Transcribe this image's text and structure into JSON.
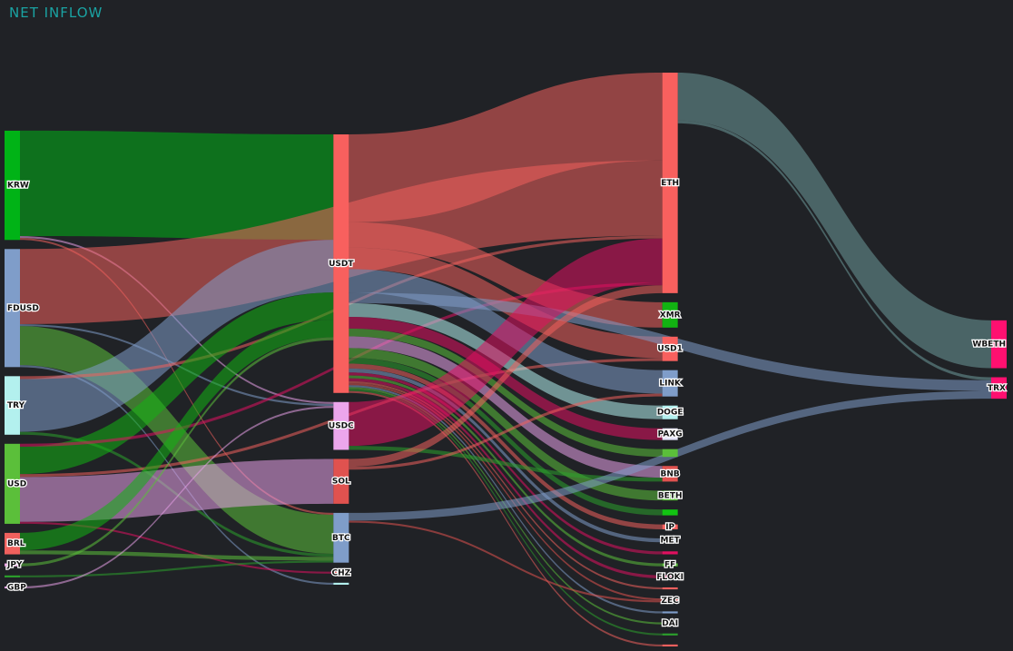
{
  "chart_data": {
    "type": "sankey",
    "title": "NET INFLOW",
    "link_opacity": 0.55,
    "nodes": [
      {
        "label": "KRW",
        "column": 0,
        "color": "#00b316"
      },
      {
        "label": "FDUSD",
        "column": 0,
        "color": "#7f9dc9"
      },
      {
        "label": "TRY",
        "column": 0,
        "color": "#b3f0ee"
      },
      {
        "label": "USD",
        "column": 0,
        "color": "#5bbf3a"
      },
      {
        "label": "BRL",
        "column": 0,
        "color": "#f0605d"
      },
      {
        "label": "JPY",
        "column": 0,
        "color": "#f0a8e8"
      },
      {
        "label": null,
        "column": 0,
        "color": "#2ca02c"
      },
      {
        "label": "GBP",
        "column": 0,
        "color": "#e8a0e8"
      },
      {
        "label": "USDT",
        "column": 1,
        "color": "#f8605e"
      },
      {
        "label": "USDC",
        "column": 1,
        "color": "#eca6ec"
      },
      {
        "label": "SOL",
        "column": 1,
        "color": "#e0524f"
      },
      {
        "label": "BTC",
        "column": 1,
        "color": "#7f9dc9"
      },
      {
        "label": "CHZ",
        "column": 1,
        "color": "#f05a5a"
      },
      {
        "label": null,
        "column": 1,
        "color": "#b3f0ee"
      },
      {
        "label": "ETH",
        "column": 2,
        "color": "#f8605e"
      },
      {
        "label": "XMR",
        "column": 2,
        "color": "#12b312"
      },
      {
        "label": "USD1",
        "column": 2,
        "color": "#f8605e"
      },
      {
        "label": "LINK",
        "column": 2,
        "color": "#7f9dc9"
      },
      {
        "label": "DOGE",
        "column": 2,
        "color": "#b3f0ee"
      },
      {
        "label": "PAXG",
        "column": 2,
        "color": "#e6e6fa"
      },
      {
        "label": null,
        "column": 2,
        "color": "#5bbf3a"
      },
      {
        "label": "BNB",
        "column": 2,
        "color": "#e0524f"
      },
      {
        "label": "BETH",
        "column": 2,
        "color": "#5bbf3a"
      },
      {
        "label": null,
        "column": 2,
        "color": "#12c312"
      },
      {
        "label": "IP",
        "column": 2,
        "color": "#f8605e"
      },
      {
        "label": "MET",
        "column": 2,
        "color": "#7f9dc9"
      },
      {
        "label": null,
        "column": 2,
        "color": "#e01060"
      },
      {
        "label": "FF",
        "column": 2,
        "color": "#5bbf3a"
      },
      {
        "label": "FLOKI",
        "column": 2,
        "color": "#e01060"
      },
      {
        "label": null,
        "column": 2,
        "color": "#f8605e"
      },
      {
        "label": "ZEC",
        "column": 2,
        "color": "#e0524f"
      },
      {
        "label": null,
        "column": 2,
        "color": "#7f9dc9"
      },
      {
        "label": "DAI",
        "column": 2,
        "color": "#5bbf3a"
      },
      {
        "label": null,
        "column": 2,
        "color": "#2ca02c"
      },
      {
        "label": null,
        "column": 2,
        "color": "#f8605e"
      },
      {
        "label": "WBETH",
        "column": 3,
        "color": "#ff1070"
      },
      {
        "label": "TRX",
        "column": 3,
        "color": "#ff1070"
      }
    ],
    "links": [
      {
        "source": 0,
        "target": 8,
        "value": 108,
        "color": "#00b316"
      },
      {
        "source": 0,
        "target": 9,
        "value": 2,
        "color": "#e8a0e8"
      },
      {
        "source": 0,
        "target": 11,
        "value": 2,
        "color": "#f0605d"
      },
      {
        "source": 1,
        "target": 14,
        "value": 77,
        "color": "#f0605d"
      },
      {
        "source": 1,
        "target": 11,
        "value": 40,
        "color": "#5bbf3a"
      },
      {
        "source": 1,
        "target": 9,
        "value": 2,
        "color": "#7f9dc9"
      },
      {
        "source": 1,
        "target": 13,
        "value": 2,
        "color": "#7f9dc9"
      },
      {
        "source": 2,
        "target": 8,
        "value": 54,
        "color": "#7f9dc9"
      },
      {
        "source": 2,
        "target": 14,
        "value": 3,
        "color": "#f0605d"
      },
      {
        "source": 2,
        "target": 11,
        "value": 3,
        "color": "#2ca02c"
      },
      {
        "source": 3,
        "target": 10,
        "value": 46,
        "color": "#e8a0e8"
      },
      {
        "source": 3,
        "target": 8,
        "value": 28,
        "color": "#12b312"
      },
      {
        "source": 3,
        "target": 14,
        "value": 3,
        "color": "#e01060"
      },
      {
        "source": 3,
        "target": 16,
        "value": 3,
        "color": "#f0605d"
      },
      {
        "source": 3,
        "target": 12,
        "value": 2,
        "color": "#e01060"
      },
      {
        "source": 4,
        "target": 8,
        "value": 18,
        "color": "#12b312"
      },
      {
        "source": 4,
        "target": 11,
        "value": 4,
        "color": "#5bbf3a"
      },
      {
        "source": 5,
        "target": 8,
        "value": 3,
        "color": "#5bbf3a"
      },
      {
        "source": 6,
        "target": 11,
        "value": 2,
        "color": "#2ca02c"
      },
      {
        "source": 7,
        "target": 9,
        "value": 2,
        "color": "#e8a0e8"
      },
      {
        "source": 8,
        "target": 14,
        "value": 90,
        "color": "#f0605d"
      },
      {
        "source": 8,
        "target": 15,
        "value": 26,
        "color": "#f0605d"
      },
      {
        "source": 8,
        "target": 16,
        "value": 22,
        "color": "#f0605d"
      },
      {
        "source": 8,
        "target": 36,
        "value": 11,
        "color": "#7f9dc9"
      },
      {
        "source": 8,
        "target": 17,
        "value": 24,
        "color": "#7f9dc9"
      },
      {
        "source": 8,
        "target": 18,
        "value": 14,
        "color": "#b3f0ee"
      },
      {
        "source": 8,
        "target": 19,
        "value": 12,
        "color": "#e01060"
      },
      {
        "source": 8,
        "target": 20,
        "value": 8,
        "color": "#5bbf3a"
      },
      {
        "source": 8,
        "target": 21,
        "value": 12,
        "color": "#e8a0e8"
      },
      {
        "source": 8,
        "target": 22,
        "value": 10,
        "color": "#5bbf3a"
      },
      {
        "source": 8,
        "target": 23,
        "value": 6,
        "color": "#2ca02c"
      },
      {
        "source": 8,
        "target": 24,
        "value": 5,
        "color": "#f0605d"
      },
      {
        "source": 8,
        "target": 25,
        "value": 4,
        "color": "#7f9dc9"
      },
      {
        "source": 8,
        "target": 26,
        "value": 3,
        "color": "#e01060"
      },
      {
        "source": 8,
        "target": 27,
        "value": 3,
        "color": "#5bbf3a"
      },
      {
        "source": 8,
        "target": 28,
        "value": 3,
        "color": "#e01060"
      },
      {
        "source": 8,
        "target": 29,
        "value": 2,
        "color": "#f0605d"
      },
      {
        "source": 8,
        "target": 30,
        "value": 2,
        "color": "#e0524f"
      },
      {
        "source": 8,
        "target": 31,
        "value": 2,
        "color": "#7f9dc9"
      },
      {
        "source": 8,
        "target": 32,
        "value": 2,
        "color": "#5bbf3a"
      },
      {
        "source": 8,
        "target": 33,
        "value": 2,
        "color": "#2ca02c"
      },
      {
        "source": 8,
        "target": 34,
        "value": 2,
        "color": "#f0605d"
      },
      {
        "source": 9,
        "target": 14,
        "value": 45,
        "color": "#e01060"
      },
      {
        "source": 9,
        "target": 21,
        "value": 4,
        "color": "#2ca02c"
      },
      {
        "source": 10,
        "target": 14,
        "value": 8,
        "color": "#f0605d"
      },
      {
        "source": 10,
        "target": 17,
        "value": 3,
        "color": "#f0605d"
      },
      {
        "source": 11,
        "target": 36,
        "value": 8,
        "color": "#7f9dc9"
      },
      {
        "source": 11,
        "target": 30,
        "value": 2,
        "color": "#e0524f"
      },
      {
        "source": 14,
        "target": 35,
        "value": 49,
        "color": "#6e9a9a"
      },
      {
        "source": 14,
        "target": 36,
        "value": 3,
        "color": "#6e9a9a"
      }
    ]
  }
}
